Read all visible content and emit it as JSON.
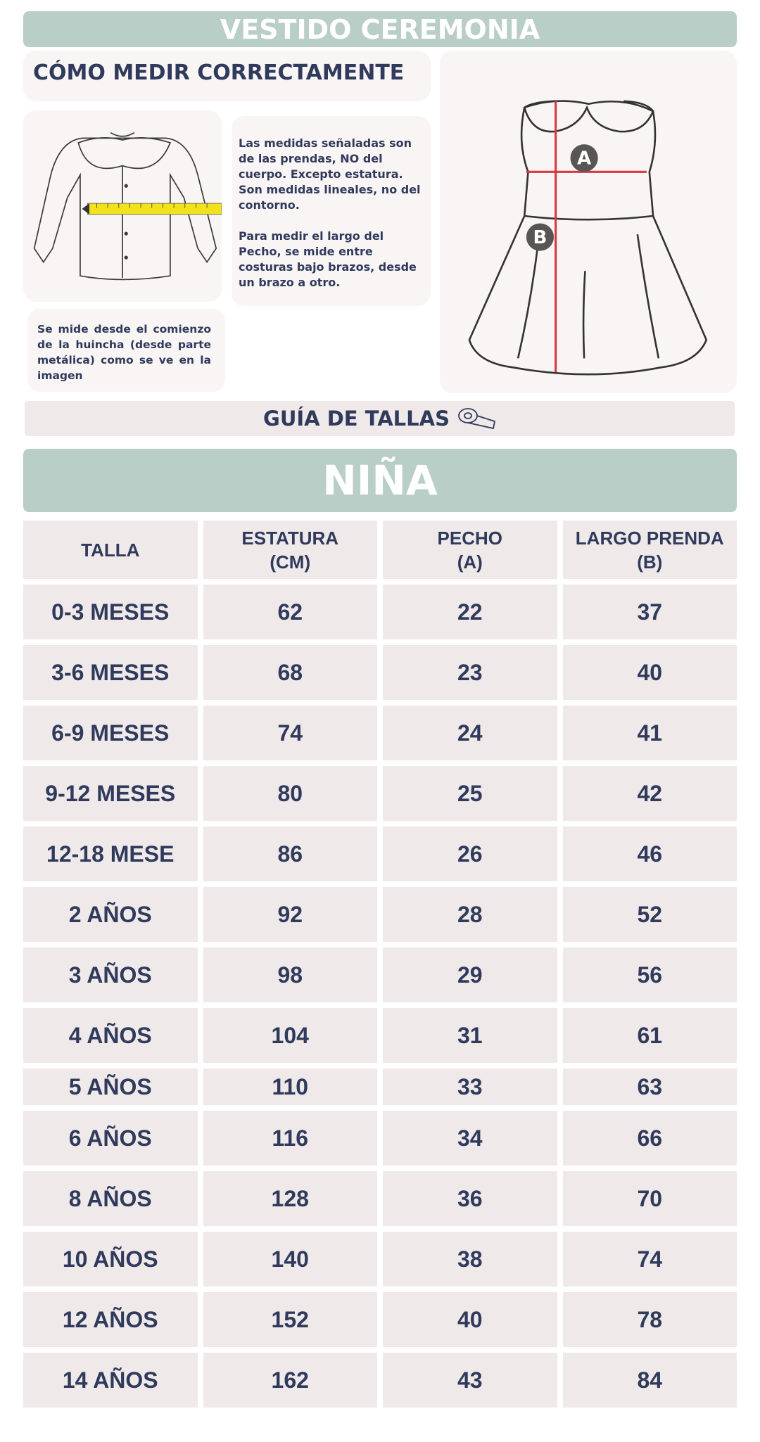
{
  "header": {
    "title": "VESTIDO CEREMONIA"
  },
  "how_to": {
    "title": "CÓMO MEDIR CORRECTAMENTE",
    "text_1": "Las medidas señaladas son de las prendas, NO del cuerpo. Excepto estatura. Son medidas lineales, no del contorno.",
    "text_2": "Para medir el largo del Pecho, se mide entre costuras bajo brazos, desde un brazo a otro.",
    "note": "Se mide desde el comienzo de la huincha (desde parte metálica) como se ve en la imagen",
    "marker_a": "A",
    "marker_b": "B"
  },
  "guide": {
    "title": "GUÍA DE TALLAS"
  },
  "table": {
    "section": "NIÑA",
    "columns": [
      [
        "TALLA"
      ],
      [
        "ESTATURA",
        "(CM)"
      ],
      [
        "PECHO",
        "(A)"
      ],
      [
        "LARGO PRENDA",
        "(B)"
      ]
    ],
    "rows": [
      [
        "0-3 MESES",
        62,
        22,
        37
      ],
      [
        "3-6 MESES",
        68,
        23,
        40
      ],
      [
        "6-9 MESES",
        74,
        24,
        41
      ],
      [
        "9-12 MESES",
        80,
        25,
        42
      ],
      [
        "12-18 MESE",
        86,
        26,
        46
      ],
      [
        "2 AÑOS",
        92,
        28,
        52
      ],
      [
        "3 AÑOS",
        98,
        29,
        56
      ],
      [
        "4 AÑOS",
        104,
        31,
        61
      ],
      [
        "5 AÑOS",
        110,
        33,
        63
      ],
      [
        "6 AÑOS",
        116,
        34,
        66
      ],
      [
        "8 AÑOS",
        128,
        36,
        70
      ],
      [
        "10 AÑOS",
        140,
        38,
        74
      ],
      [
        "12 AÑOS",
        152,
        40,
        78
      ],
      [
        "14 AÑOS",
        162,
        43,
        84
      ]
    ]
  }
}
